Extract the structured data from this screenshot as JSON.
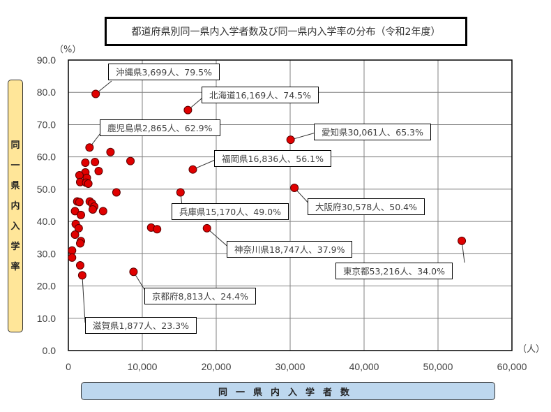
{
  "title": "都道府県別同一県内入学者数及び同一県内入学率の分布（令和2年度）",
  "y_unit": "（%）",
  "x_unit": "（人）",
  "y_axis_label": [
    "同",
    "一",
    "県",
    "内",
    "入",
    "学",
    "率"
  ],
  "x_axis_label": "同一県内入学者数",
  "colors": {
    "marker_fill": "#e00000",
    "marker_stroke": "#5a0000",
    "grid": "#808080",
    "ylabel_bg": "#ffe699",
    "xlabel_bg": "#bdd7ee"
  },
  "callouts": [
    {
      "text": "沖縄県3,699人、79.5%"
    },
    {
      "text": "北海道16,169人、74.5%"
    },
    {
      "text": "鹿児島県2,865人、62.9%"
    },
    {
      "text": "愛知県30,061人、65.3%"
    },
    {
      "text": "福岡県16,836人、56.1%"
    },
    {
      "text": "大阪府30,578人、50.4%"
    },
    {
      "text": "兵庫県15,170人、49.0%"
    },
    {
      "text": "神奈川県18,747人、37.9%"
    },
    {
      "text": "東京都53,216人、34.0%"
    },
    {
      "text": "京都府8,813人、24.4%"
    },
    {
      "text": "滋賀県1,877人、23.3%"
    }
  ],
  "chart_data": {
    "type": "scatter",
    "title": "都道府県別同一県内入学者数及び同一県内入学率の分布（令和2年度）",
    "xlabel": "同一県内入学者数",
    "ylabel": "同一県内入学率",
    "x_unit": "人",
    "y_unit": "%",
    "xlim": [
      0,
      60000
    ],
    "ylim": [
      0,
      90
    ],
    "x_ticks": [
      "0",
      "10,000",
      "20,000",
      "30,000",
      "40,000",
      "50,000",
      "60,000"
    ],
    "y_ticks": [
      "0.0",
      "10.0",
      "20.0",
      "30.0",
      "40.0",
      "50.0",
      "60.0",
      "70.0",
      "80.0",
      "90.0"
    ],
    "grid": true,
    "legend": null,
    "labeled_points": [
      {
        "name": "沖縄県",
        "x": 3699,
        "y": 79.5
      },
      {
        "name": "北海道",
        "x": 16169,
        "y": 74.5
      },
      {
        "name": "鹿児島県",
        "x": 2865,
        "y": 62.9
      },
      {
        "name": "愛知県",
        "x": 30061,
        "y": 65.3
      },
      {
        "name": "福岡県",
        "x": 16836,
        "y": 56.1
      },
      {
        "name": "大阪府",
        "x": 30578,
        "y": 50.4
      },
      {
        "name": "兵庫県",
        "x": 15170,
        "y": 49.0
      },
      {
        "name": "神奈川県",
        "x": 18747,
        "y": 37.9
      },
      {
        "name": "東京都",
        "x": 53216,
        "y": 34.0
      },
      {
        "name": "京都府",
        "x": 8813,
        "y": 24.4
      },
      {
        "name": "滋賀県",
        "x": 1877,
        "y": 23.3
      }
    ],
    "unlabeled_points_estimated": [
      {
        "x": 5700,
        "y": 61.5
      },
      {
        "x": 8400,
        "y": 58.7
      },
      {
        "x": 2300,
        "y": 58.2
      },
      {
        "x": 3600,
        "y": 58.4
      },
      {
        "x": 4100,
        "y": 55.6
      },
      {
        "x": 2300,
        "y": 55.2
      },
      {
        "x": 1500,
        "y": 54.3
      },
      {
        "x": 2500,
        "y": 53.5
      },
      {
        "x": 1600,
        "y": 52.2
      },
      {
        "x": 2400,
        "y": 52.0
      },
      {
        "x": 2700,
        "y": 51.7
      },
      {
        "x": 6500,
        "y": 49.0
      },
      {
        "x": 1200,
        "y": 46.2
      },
      {
        "x": 1500,
        "y": 46.0
      },
      {
        "x": 2900,
        "y": 46.2
      },
      {
        "x": 3200,
        "y": 45.6
      },
      {
        "x": 3500,
        "y": 44.6
      },
      {
        "x": 3300,
        "y": 43.7
      },
      {
        "x": 4700,
        "y": 43.2
      },
      {
        "x": 900,
        "y": 43.2
      },
      {
        "x": 1700,
        "y": 42.0
      },
      {
        "x": 11200,
        "y": 38.1
      },
      {
        "x": 12000,
        "y": 37.6
      },
      {
        "x": 1000,
        "y": 39.2
      },
      {
        "x": 1400,
        "y": 37.9
      },
      {
        "x": 900,
        "y": 35.9
      },
      {
        "x": 1700,
        "y": 33.9
      },
      {
        "x": 1600,
        "y": 33.2
      },
      {
        "x": 500,
        "y": 31.0
      },
      {
        "x": 500,
        "y": 28.8
      },
      {
        "x": 1600,
        "y": 26.4
      }
    ]
  }
}
